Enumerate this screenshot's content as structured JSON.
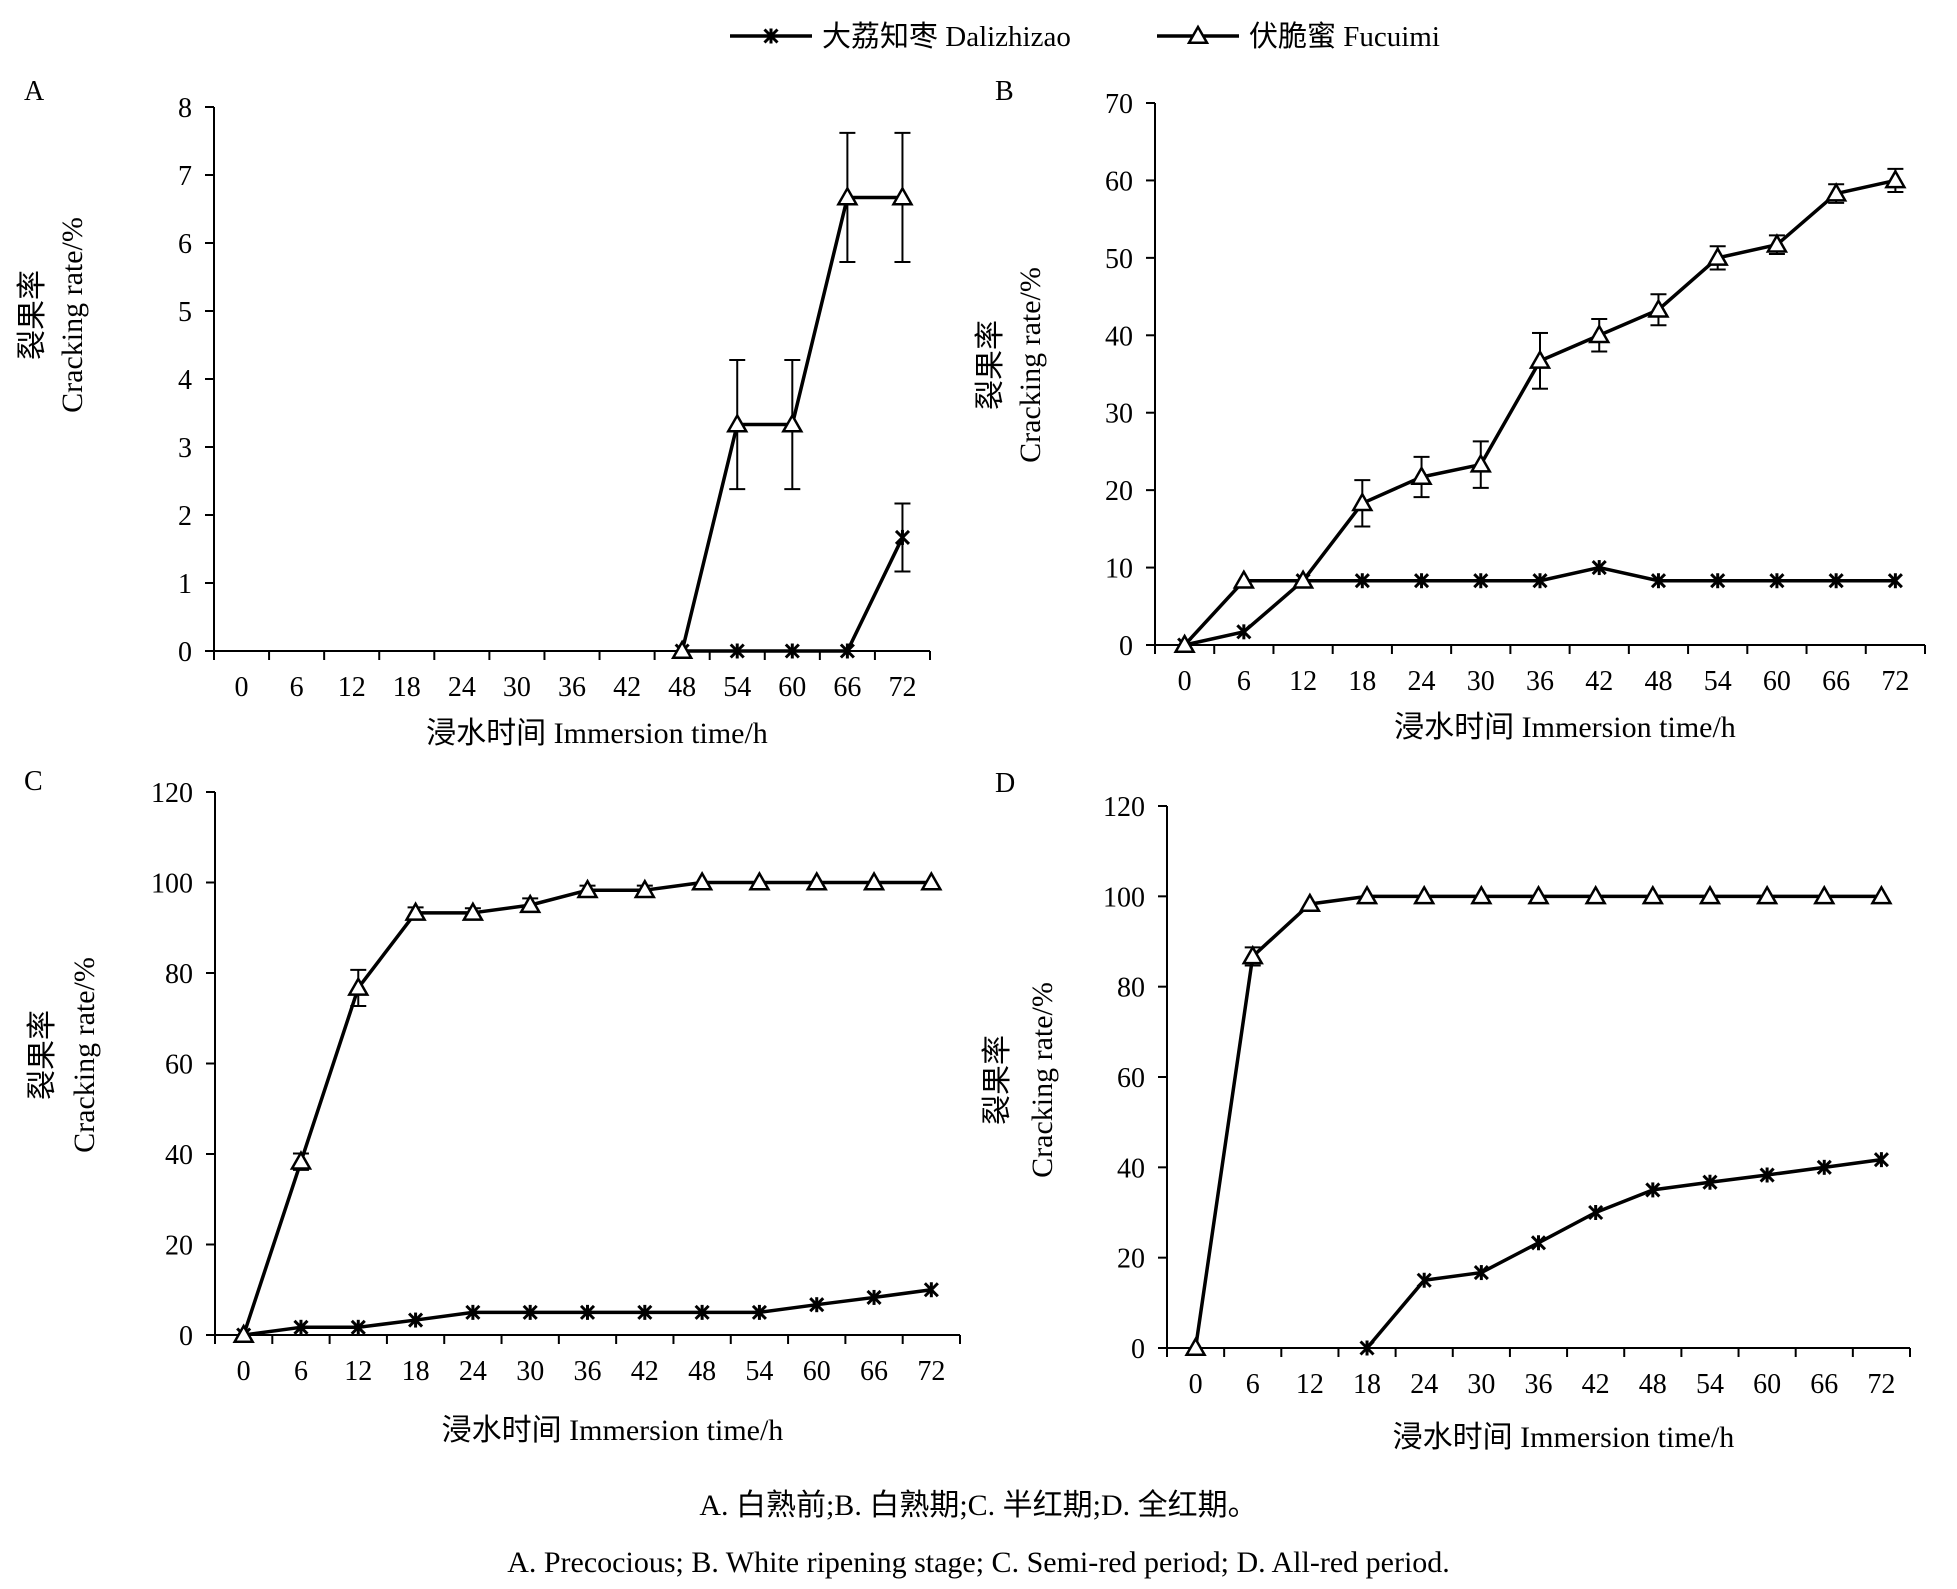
{
  "legend": [
    {
      "name": "大荔知枣 Dalizhizao",
      "marker": "star"
    },
    {
      "name": "伏脆蜜 Fucuimi",
      "marker": "triangle"
    }
  ],
  "caption": {
    "zh": "A. 白熟前;B. 白熟期;C. 半红期;D. 全红期。",
    "en": "A. Precocious; B. White ripening stage; C. Semi-red period; D. All-red period."
  },
  "chart_data": [
    {
      "panel": "A",
      "type": "line",
      "xlabel": "浸水时间 Immersion time/h",
      "ylabel_zh": "裂果率",
      "ylabel_en": "Cracking rate/%",
      "ylim": [
        0,
        8
      ],
      "yticks": [
        0,
        1,
        2,
        3,
        4,
        5,
        6,
        7,
        8
      ],
      "x": [
        0,
        6,
        12,
        18,
        24,
        30,
        36,
        42,
        48,
        54,
        60,
        66,
        72
      ],
      "series": [
        {
          "name": "大荔知枣 Dalizhizao",
          "marker": "star",
          "points": [
            [
              48,
              0
            ],
            [
              54,
              0
            ],
            [
              60,
              0
            ],
            [
              66,
              0
            ],
            [
              72,
              1.67
            ]
          ],
          "err": [
            0,
            0,
            0,
            0,
            0.5
          ]
        },
        {
          "name": "伏脆蜜 Fucuimi",
          "marker": "triangle",
          "points": [
            [
              48,
              0
            ],
            [
              54,
              3.33
            ],
            [
              60,
              3.33
            ],
            [
              66,
              6.67
            ],
            [
              72,
              6.67
            ]
          ],
          "err": [
            0,
            0.95,
            0.95,
            0.95,
            0.95
          ]
        }
      ]
    },
    {
      "panel": "B",
      "type": "line",
      "xlabel": "浸水时间 Immersion time/h",
      "ylabel_zh": "裂果率",
      "ylabel_en": "Cracking rate/%",
      "ylim": [
        0,
        70
      ],
      "yticks": [
        0,
        10,
        20,
        30,
        40,
        50,
        60,
        70
      ],
      "x": [
        0,
        6,
        12,
        18,
        24,
        30,
        36,
        42,
        48,
        54,
        60,
        66,
        72
      ],
      "series": [
        {
          "name": "大荔知枣 Dalizhizao",
          "marker": "star",
          "points": [
            [
              0,
              0
            ],
            [
              6,
              1.7
            ],
            [
              12,
              8.3
            ],
            [
              18,
              8.3
            ],
            [
              24,
              8.3
            ],
            [
              30,
              8.3
            ],
            [
              36,
              8.3
            ],
            [
              42,
              10
            ],
            [
              48,
              8.3
            ],
            [
              54,
              8.3
            ],
            [
              60,
              8.3
            ],
            [
              66,
              8.3
            ],
            [
              72,
              8.3
            ]
          ],
          "err": [
            0,
            0,
            0,
            0,
            0,
            0,
            0,
            0,
            0,
            0,
            0,
            0,
            0
          ]
        },
        {
          "name": "伏脆蜜 Fucuimi",
          "marker": "triangle",
          "points": [
            [
              0,
              0
            ],
            [
              6,
              8.3
            ],
            [
              12,
              8.3
            ],
            [
              18,
              18.3
            ],
            [
              24,
              21.7
            ],
            [
              30,
              23.3
            ],
            [
              36,
              36.7
            ],
            [
              42,
              40
            ],
            [
              48,
              43.3
            ],
            [
              54,
              50
            ],
            [
              60,
              51.7
            ],
            [
              66,
              58.3
            ],
            [
              72,
              60
            ]
          ],
          "err": [
            0,
            0,
            0,
            3,
            2.6,
            3,
            3.6,
            2.1,
            2,
            1.5,
            1.2,
            1.2,
            1.5
          ]
        }
      ]
    },
    {
      "panel": "C",
      "type": "line",
      "xlabel": "浸水时间 Immersion time/h",
      "ylabel_zh": "裂果率",
      "ylabel_en": "Cracking rate/%",
      "ylim": [
        0,
        120
      ],
      "yticks": [
        0,
        20,
        40,
        60,
        80,
        100,
        120
      ],
      "x": [
        0,
        6,
        12,
        18,
        24,
        30,
        36,
        42,
        48,
        54,
        60,
        66,
        72
      ],
      "series": [
        {
          "name": "大荔知枣 Dalizhizao",
          "marker": "star",
          "points": [
            [
              0,
              0
            ],
            [
              6,
              1.7
            ],
            [
              12,
              1.7
            ],
            [
              18,
              3.3
            ],
            [
              24,
              5
            ],
            [
              30,
              5
            ],
            [
              36,
              5
            ],
            [
              42,
              5
            ],
            [
              48,
              5
            ],
            [
              54,
              5
            ],
            [
              60,
              6.7
            ],
            [
              66,
              8.3
            ],
            [
              72,
              10
            ]
          ],
          "err": [
            0,
            0,
            0,
            0,
            0,
            0,
            0,
            0,
            0,
            0,
            0,
            0,
            0
          ]
        },
        {
          "name": "伏脆蜜 Fucuimi",
          "marker": "triangle",
          "points": [
            [
              0,
              0
            ],
            [
              6,
              38.3
            ],
            [
              12,
              76.7
            ],
            [
              18,
              93.3
            ],
            [
              24,
              93.3
            ],
            [
              30,
              95
            ],
            [
              36,
              98.3
            ],
            [
              42,
              98.3
            ],
            [
              48,
              100
            ],
            [
              54,
              100
            ],
            [
              60,
              100
            ],
            [
              66,
              100
            ],
            [
              72,
              100
            ]
          ],
          "err": [
            0,
            1.8,
            4,
            1.2,
            1,
            1.5,
            1,
            1,
            0,
            0,
            0,
            0,
            0
          ]
        }
      ]
    },
    {
      "panel": "D",
      "type": "line",
      "xlabel": "浸水时间 Immersion time/h",
      "ylabel_zh": "裂果率",
      "ylabel_en": "Cracking rate/%",
      "ylim": [
        0,
        120
      ],
      "yticks": [
        0,
        20,
        40,
        60,
        80,
        100,
        120
      ],
      "x": [
        0,
        6,
        12,
        18,
        24,
        30,
        36,
        42,
        48,
        54,
        60,
        66,
        72
      ],
      "series": [
        {
          "name": "大荔知枣 Dalizhizao",
          "marker": "star",
          "points": [
            [
              18,
              0
            ],
            [
              24,
              15
            ],
            [
              30,
              16.7
            ],
            [
              36,
              23.3
            ],
            [
              42,
              30
            ],
            [
              48,
              35
            ],
            [
              54,
              36.7
            ],
            [
              60,
              38.3
            ],
            [
              66,
              40
            ],
            [
              72,
              41.7
            ]
          ],
          "err": [
            0,
            0,
            0,
            0,
            0,
            0,
            0,
            0,
            0,
            0
          ]
        },
        {
          "name": "伏脆蜜 Fucuimi",
          "marker": "triangle",
          "points": [
            [
              0,
              0
            ],
            [
              6,
              86.7
            ],
            [
              12,
              98.3
            ],
            [
              18,
              100
            ],
            [
              24,
              100
            ],
            [
              30,
              100
            ],
            [
              36,
              100
            ],
            [
              42,
              100
            ],
            [
              48,
              100
            ],
            [
              54,
              100
            ],
            [
              60,
              100
            ],
            [
              66,
              100
            ],
            [
              72,
              100
            ]
          ],
          "err": [
            0,
            2,
            0,
            0,
            0,
            0,
            0,
            0,
            0,
            0,
            0,
            0,
            0
          ]
        }
      ]
    }
  ]
}
